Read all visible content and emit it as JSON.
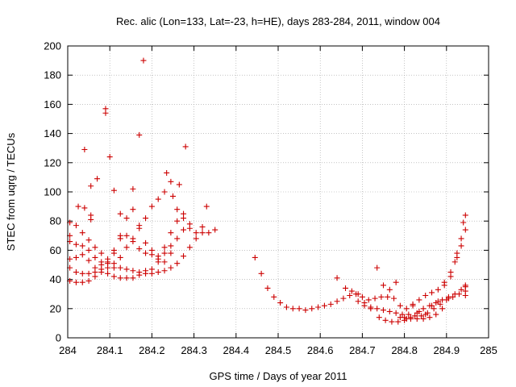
{
  "chart_data": {
    "type": "scatter",
    "title": "Rec. alic (Lon=133, Lat=-23, h=HE), days 283-284, 2011, window 004",
    "xlabel": "GPS time / Days of year 2011",
    "ylabel": "STEC from uqrg / TECUs",
    "xlim": [
      284,
      285
    ],
    "ylim": [
      0,
      200
    ],
    "x_ticks": [
      284,
      284.1,
      284.2,
      284.3,
      284.4,
      284.5,
      284.6,
      284.7,
      284.8,
      284.9,
      285
    ],
    "x_tick_labels": [
      "284",
      "284.1",
      "284.2",
      "284.3",
      "284.4",
      "284.5",
      "284.6",
      "284.7",
      "284.8",
      "284.9",
      "285"
    ],
    "y_ticks": [
      0,
      20,
      40,
      60,
      80,
      100,
      120,
      140,
      160,
      180,
      200
    ],
    "y_tick_labels": [
      "0",
      "20",
      "40",
      "60",
      "80",
      "100",
      "120",
      "140",
      "160",
      "180",
      "200"
    ],
    "grid": true,
    "marker": "plus",
    "series": [
      {
        "name": "STEC",
        "color": "#cc0000",
        "points": [
          [
            284.005,
            39
          ],
          [
            284.02,
            38
          ],
          [
            284.035,
            38
          ],
          [
            284.05,
            39
          ],
          [
            284.065,
            42
          ],
          [
            284.08,
            45
          ],
          [
            284.095,
            44
          ],
          [
            284.11,
            42
          ],
          [
            284.125,
            41
          ],
          [
            284.14,
            41
          ],
          [
            284.155,
            41
          ],
          [
            284.17,
            43
          ],
          [
            284.185,
            44
          ],
          [
            284.2,
            44
          ],
          [
            284.215,
            45
          ],
          [
            284.23,
            46
          ],
          [
            284.245,
            48
          ],
          [
            284.26,
            51
          ],
          [
            284.275,
            56
          ],
          [
            284.29,
            62
          ],
          [
            284.305,
            68
          ],
          [
            284.32,
            72
          ],
          [
            284.335,
            72
          ],
          [
            284.35,
            74
          ],
          [
            284.005,
            48
          ],
          [
            284.02,
            45
          ],
          [
            284.035,
            44
          ],
          [
            284.05,
            44
          ],
          [
            284.065,
            45
          ],
          [
            284.08,
            47
          ],
          [
            284.095,
            48
          ],
          [
            284.11,
            48
          ],
          [
            284.125,
            48
          ],
          [
            284.14,
            47
          ],
          [
            284.155,
            46
          ],
          [
            284.17,
            45
          ],
          [
            284.185,
            46
          ],
          [
            284.2,
            47
          ],
          [
            284.215,
            52
          ],
          [
            284.23,
            58
          ],
          [
            284.245,
            63
          ],
          [
            284.26,
            68
          ],
          [
            284.275,
            74
          ],
          [
            284.29,
            75
          ],
          [
            284.305,
            72
          ],
          [
            284.32,
            76
          ],
          [
            284.005,
            54
          ],
          [
            284.02,
            55
          ],
          [
            284.035,
            57
          ],
          [
            284.05,
            53
          ],
          [
            284.065,
            48
          ],
          [
            284.08,
            52
          ],
          [
            284.095,
            52
          ],
          [
            284.11,
            58
          ],
          [
            284.125,
            68
          ],
          [
            284.14,
            70
          ],
          [
            284.155,
            66
          ],
          [
            284.17,
            61
          ],
          [
            284.185,
            58
          ],
          [
            284.2,
            57
          ],
          [
            284.215,
            54
          ],
          [
            284.23,
            52
          ],
          [
            284.245,
            58
          ],
          [
            284.26,
            88
          ],
          [
            284.275,
            82
          ],
          [
            284.29,
            78
          ],
          [
            284.005,
            66
          ],
          [
            284.02,
            64
          ],
          [
            284.035,
            63
          ],
          [
            284.05,
            60
          ],
          [
            284.065,
            55
          ],
          [
            284.08,
            50
          ],
          [
            284.095,
            51
          ],
          [
            284.11,
            60
          ],
          [
            284.125,
            70
          ],
          [
            284.14,
            82
          ],
          [
            284.155,
            88
          ],
          [
            284.17,
            77
          ],
          [
            284.185,
            65
          ],
          [
            284.2,
            60
          ],
          [
            284.215,
            56
          ],
          [
            284.23,
            62
          ],
          [
            284.245,
            72
          ],
          [
            284.26,
            80
          ],
          [
            284.275,
            85
          ],
          [
            284.005,
            79
          ],
          [
            284.02,
            77
          ],
          [
            284.035,
            72
          ],
          [
            284.05,
            67
          ],
          [
            284.065,
            62
          ],
          [
            284.08,
            58
          ],
          [
            284.095,
            54
          ],
          [
            284.11,
            51
          ],
          [
            284.125,
            55
          ],
          [
            284.14,
            62
          ],
          [
            284.155,
            68
          ],
          [
            284.17,
            75
          ],
          [
            284.185,
            82
          ],
          [
            284.2,
            90
          ],
          [
            284.215,
            95
          ],
          [
            284.23,
            100
          ],
          [
            284.245,
            107
          ],
          [
            284.005,
            70
          ],
          [
            284.025,
            90
          ],
          [
            284.04,
            89
          ],
          [
            284.055,
            84
          ],
          [
            284.055,
            81
          ],
          [
            284.04,
            129
          ],
          [
            284.055,
            104
          ],
          [
            284.07,
            109
          ],
          [
            284.09,
            157
          ],
          [
            284.09,
            154
          ],
          [
            284.1,
            124
          ],
          [
            284.11,
            101
          ],
          [
            284.125,
            85
          ],
          [
            284.155,
            102
          ],
          [
            284.17,
            139
          ],
          [
            284.18,
            190
          ],
          [
            284.235,
            113
          ],
          [
            284.25,
            97
          ],
          [
            284.265,
            105
          ],
          [
            284.28,
            131
          ],
          [
            284.33,
            90
          ],
          [
            284.445,
            55
          ],
          [
            284.46,
            44
          ],
          [
            284.475,
            34
          ],
          [
            284.49,
            28
          ],
          [
            284.505,
            24
          ],
          [
            284.52,
            21
          ],
          [
            284.535,
            20
          ],
          [
            284.55,
            20
          ],
          [
            284.565,
            19
          ],
          [
            284.58,
            20
          ],
          [
            284.595,
            21
          ],
          [
            284.61,
            22
          ],
          [
            284.625,
            23
          ],
          [
            284.64,
            25
          ],
          [
            284.655,
            27
          ],
          [
            284.67,
            29
          ],
          [
            284.685,
            30
          ],
          [
            284.7,
            28
          ],
          [
            284.715,
            26
          ],
          [
            284.73,
            27
          ],
          [
            284.745,
            28
          ],
          [
            284.76,
            28
          ],
          [
            284.775,
            27
          ],
          [
            284.79,
            22
          ],
          [
            284.805,
            20
          ],
          [
            284.82,
            22
          ],
          [
            284.835,
            26
          ],
          [
            284.85,
            29
          ],
          [
            284.865,
            31
          ],
          [
            284.88,
            33
          ],
          [
            284.895,
            36
          ],
          [
            284.91,
            42
          ],
          [
            284.925,
            58
          ],
          [
            284.94,
            79
          ],
          [
            284.945,
            84
          ],
          [
            284.64,
            41
          ],
          [
            284.66,
            34
          ],
          [
            284.675,
            32
          ],
          [
            284.69,
            30
          ],
          [
            284.705,
            24
          ],
          [
            284.72,
            21
          ],
          [
            284.735,
            20
          ],
          [
            284.75,
            19
          ],
          [
            284.765,
            18
          ],
          [
            284.78,
            17
          ],
          [
            284.795,
            16
          ],
          [
            284.81,
            16
          ],
          [
            284.825,
            15
          ],
          [
            284.84,
            15
          ],
          [
            284.855,
            17
          ],
          [
            284.87,
            20
          ],
          [
            284.885,
            23
          ],
          [
            284.9,
            26
          ],
          [
            284.915,
            28
          ],
          [
            284.93,
            30
          ],
          [
            284.945,
            32
          ],
          [
            284.69,
            25
          ],
          [
            284.705,
            22
          ],
          [
            284.72,
            20
          ],
          [
            284.735,
            48
          ],
          [
            284.75,
            36
          ],
          [
            284.765,
            33
          ],
          [
            284.78,
            38
          ],
          [
            284.8,
            14
          ],
          [
            284.815,
            13
          ],
          [
            284.83,
            13
          ],
          [
            284.845,
            13
          ],
          [
            284.86,
            14
          ],
          [
            284.875,
            16
          ],
          [
            284.89,
            20
          ],
          [
            284.905,
            27
          ],
          [
            284.92,
            52
          ],
          [
            284.935,
            68
          ],
          [
            284.945,
            74
          ],
          [
            284.74,
            14
          ],
          [
            284.755,
            12
          ],
          [
            284.77,
            11
          ],
          [
            284.785,
            11
          ],
          [
            284.8,
            12
          ],
          [
            284.815,
            14
          ],
          [
            284.83,
            17
          ],
          [
            284.845,
            20
          ],
          [
            284.86,
            22
          ],
          [
            284.875,
            24
          ],
          [
            284.89,
            26
          ],
          [
            284.905,
            28
          ],
          [
            284.92,
            30
          ],
          [
            284.935,
            33
          ],
          [
            284.945,
            35
          ],
          [
            284.79,
            14
          ],
          [
            284.805,
            13
          ],
          [
            284.82,
            23
          ],
          [
            284.835,
            18
          ],
          [
            284.85,
            16
          ],
          [
            284.865,
            22
          ],
          [
            284.88,
            25
          ],
          [
            284.895,
            38
          ],
          [
            284.91,
            45
          ],
          [
            284.925,
            55
          ],
          [
            284.935,
            63
          ],
          [
            284.945,
            29
          ],
          [
            284.945,
            36
          ]
        ]
      }
    ]
  }
}
